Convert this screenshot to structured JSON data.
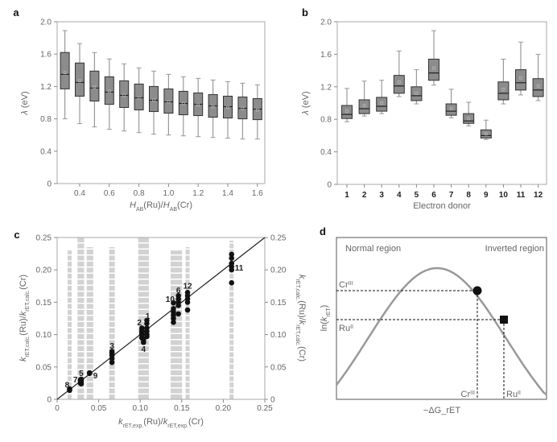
{
  "chart_data": [
    {
      "panel": "a",
      "type": "box",
      "xlabel": "H_AB(Ru)/H_AB(Cr)",
      "ylabel": "λ (eV)",
      "ylim": [
        0,
        2.0
      ],
      "yticks": [
        "0",
        "0.4",
        "0.8",
        "1.2",
        "1.6",
        "2.0"
      ],
      "xticks": [
        "0.4",
        "0.6",
        "0.8",
        "1.0",
        "1.2",
        "1.4",
        "1.6"
      ],
      "x": [
        0.3,
        0.4,
        0.5,
        0.6,
        0.7,
        0.8,
        0.9,
        1.0,
        1.1,
        1.2,
        1.3,
        1.4,
        1.5,
        1.6
      ],
      "boxes": [
        {
          "max": 1.89,
          "q3": 1.62,
          "median": 1.35,
          "q1": 1.17,
          "min": 0.8,
          "mean": 1.37
        },
        {
          "max": 1.73,
          "q3": 1.49,
          "median": 1.25,
          "q1": 1.08,
          "min": 0.74,
          "mean": 1.27
        },
        {
          "max": 1.62,
          "q3": 1.39,
          "median": 1.18,
          "q1": 1.02,
          "min": 0.7,
          "mean": 1.19
        },
        {
          "max": 1.54,
          "q3": 1.32,
          "median": 1.13,
          "q1": 0.98,
          "min": 0.67,
          "mean": 1.14
        },
        {
          "max": 1.48,
          "q3": 1.27,
          "median": 1.09,
          "q1": 0.94,
          "min": 0.65,
          "mean": 1.09
        },
        {
          "max": 1.43,
          "q3": 1.23,
          "median": 1.06,
          "q1": 0.91,
          "min": 0.63,
          "mean": 1.06
        },
        {
          "max": 1.39,
          "q3": 1.2,
          "median": 1.03,
          "q1": 0.89,
          "min": 0.61,
          "mean": 1.03
        },
        {
          "max": 1.35,
          "q3": 1.17,
          "median": 1.01,
          "q1": 0.87,
          "min": 0.6,
          "mean": 1.01
        },
        {
          "max": 1.32,
          "q3": 1.14,
          "median": 0.99,
          "q1": 0.85,
          "min": 0.59,
          "mean": 0.99
        },
        {
          "max": 1.3,
          "q3": 1.12,
          "median": 0.98,
          "q1": 0.84,
          "min": 0.58,
          "mean": 0.97
        },
        {
          "max": 1.28,
          "q3": 1.1,
          "median": 0.96,
          "q1": 0.82,
          "min": 0.57,
          "mean": 0.95
        },
        {
          "max": 1.26,
          "q3": 1.08,
          "median": 0.95,
          "q1": 0.81,
          "min": 0.56,
          "mean": 0.94
        },
        {
          "max": 1.24,
          "q3": 1.07,
          "median": 0.93,
          "q1": 0.8,
          "min": 0.55,
          "mean": 0.93
        },
        {
          "max": 1.22,
          "q3": 1.05,
          "median": 0.92,
          "q1": 0.79,
          "min": 0.55,
          "mean": 0.91
        }
      ]
    },
    {
      "panel": "b",
      "type": "box",
      "xlabel": "Electron donor",
      "ylabel": "λ (eV)",
      "ylim": [
        0,
        2.0
      ],
      "yticks": [
        "0",
        "0.4",
        "0.8",
        "1.2",
        "1.6",
        "2.0"
      ],
      "categories": [
        "1",
        "2",
        "3",
        "4",
        "5",
        "6",
        "7",
        "8",
        "9",
        "10",
        "11",
        "12"
      ],
      "boxes": [
        {
          "max": 1.18,
          "q3": 0.97,
          "median": 0.86,
          "q1": 0.81,
          "min": 0.77,
          "mean": 0.9
        },
        {
          "max": 1.27,
          "q3": 1.04,
          "median": 0.93,
          "q1": 0.87,
          "min": 0.84,
          "mean": 0.97
        },
        {
          "max": 1.28,
          "q3": 1.07,
          "median": 0.96,
          "q1": 0.9,
          "min": 0.87,
          "mean": 1.0
        },
        {
          "max": 1.64,
          "q3": 1.34,
          "median": 1.21,
          "q1": 1.12,
          "min": 1.08,
          "mean": 1.26
        },
        {
          "max": 1.41,
          "q3": 1.2,
          "median": 1.09,
          "q1": 1.03,
          "min": 0.99,
          "mean": 1.12
        },
        {
          "max": 1.89,
          "q3": 1.54,
          "median": 1.37,
          "q1": 1.28,
          "min": 1.22,
          "mean": 1.43
        },
        {
          "max": 1.17,
          "q3": 0.99,
          "median": 0.9,
          "q1": 0.85,
          "min": 0.82,
          "mean": 0.93
        },
        {
          "max": 1.01,
          "q3": 0.87,
          "median": 0.78,
          "q1": 0.75,
          "min": 0.72,
          "mean": 0.81
        },
        {
          "max": 0.79,
          "q3": 0.67,
          "median": 0.6,
          "q1": 0.57,
          "min": 0.55,
          "mean": 0.62
        },
        {
          "max": 1.54,
          "q3": 1.26,
          "median": 1.12,
          "q1": 1.04,
          "min": 0.99,
          "mean": 1.17
        },
        {
          "max": 1.75,
          "q3": 1.41,
          "median": 1.25,
          "q1": 1.16,
          "min": 1.1,
          "mean": 1.31
        },
        {
          "max": 1.6,
          "q3": 1.3,
          "median": 1.16,
          "q1": 1.08,
          "min": 1.03,
          "mean": 1.21
        }
      ]
    },
    {
      "panel": "c",
      "type": "scatter",
      "xlabel": "k_rET,exp.(Ru)/k_rET,exp.(Cr)",
      "ylabel": "k_rET,calc.(Ru)/k_rET,calc.(Cr)",
      "ylabel_right": "k_rET,calc.(Ru)/k_rET,calc.(Cr)",
      "xlim": [
        0,
        0.25
      ],
      "ylim": [
        0,
        0.25
      ],
      "ticks": [
        "0",
        "0.05",
        "0.10",
        "0.15",
        "0.20",
        "0.25"
      ],
      "diagonal": [
        [
          0,
          0
        ],
        [
          0.25,
          0.25
        ]
      ],
      "grey_columns": [
        {
          "x": 0.015,
          "ymax": 0.23
        },
        {
          "x": 0.027,
          "ymax": 0.25
        },
        {
          "x": 0.03,
          "ymax": 0.25
        },
        {
          "x": 0.038,
          "ymax": 0.235
        },
        {
          "x": 0.041,
          "ymax": 0.235
        },
        {
          "x": 0.065,
          "ymax": 0.235
        },
        {
          "x": 0.067,
          "ymax": 0.235
        },
        {
          "x": 0.1,
          "ymax": 0.25
        },
        {
          "x": 0.104,
          "ymax": 0.25
        },
        {
          "x": 0.108,
          "ymax": 0.25
        },
        {
          "x": 0.139,
          "ymax": 0.23
        },
        {
          "x": 0.142,
          "ymax": 0.23
        },
        {
          "x": 0.145,
          "ymax": 0.23
        },
        {
          "x": 0.148,
          "ymax": 0.23
        },
        {
          "x": 0.157,
          "ymax": 0.235
        },
        {
          "x": 0.21,
          "ymax": 0.245
        }
      ],
      "series": [
        {
          "label": "8",
          "x": 0.015,
          "y": [
            0.014,
            0.016
          ],
          "lx": 0.012,
          "ly": 0.022
        },
        {
          "label": "7",
          "x": 0.028,
          "y": [
            0.025,
            0.028,
            0.03
          ],
          "lx": 0.022,
          "ly": 0.03
        },
        {
          "label": "5",
          "x": 0.029,
          "y": [
            0.024,
            0.028,
            0.031
          ],
          "lx": 0.029,
          "ly": 0.04
        },
        {
          "label": "9",
          "x": 0.039,
          "y": [
            0.04,
            0.041
          ],
          "lx": 0.046,
          "ly": 0.036
        },
        {
          "label": "3",
          "x": 0.066,
          "y": [
            0.057,
            0.063,
            0.068,
            0.072,
            0.074
          ],
          "lx": 0.066,
          "ly": 0.082
        },
        {
          "label": "2",
          "x": 0.102,
          "y": [
            0.095,
            0.1,
            0.103,
            0.106,
            0.11
          ],
          "lx": 0.099,
          "ly": 0.118
        },
        {
          "label": "4",
          "x": 0.104,
          "y": [
            0.088,
            0.092
          ],
          "lx": 0.104,
          "ly": 0.077
        },
        {
          "label": "1",
          "x": 0.108,
          "y": [
            0.097,
            0.1,
            0.105,
            0.11,
            0.117,
            0.122
          ],
          "lx": 0.109,
          "ly": 0.128
        },
        {
          "label": "10",
          "x": 0.14,
          "y": [
            0.119,
            0.125,
            0.13,
            0.135,
            0.14,
            0.149
          ],
          "lx": 0.136,
          "ly": 0.154
        },
        {
          "label": "6",
          "x": 0.146,
          "y": [
            0.132,
            0.145,
            0.15,
            0.155,
            0.16
          ],
          "lx": 0.146,
          "ly": 0.168
        },
        {
          "label": "12",
          "x": 0.157,
          "y": [
            0.138,
            0.15,
            0.155,
            0.16,
            0.165
          ],
          "lx": 0.157,
          "ly": 0.175
        },
        {
          "label": "11",
          "x": 0.21,
          "y": [
            0.18,
            0.2,
            0.205,
            0.21,
            0.218,
            0.224
          ],
          "lx": 0.219,
          "ly": 0.203
        }
      ]
    },
    {
      "panel": "d",
      "type": "line",
      "xlabel": "−ΔG_rET",
      "ylabel": "ln(k_rET)",
      "region_left": "Normal region",
      "region_right": "Inverted region",
      "curve_color": "#999999",
      "markers": [
        {
          "label": "Cr",
          "sup": "III",
          "shape": "circle"
        },
        {
          "label": "Ru",
          "sup": "II",
          "shape": "square"
        }
      ]
    }
  ],
  "panel_labels": [
    "a",
    "b",
    "c",
    "d"
  ]
}
